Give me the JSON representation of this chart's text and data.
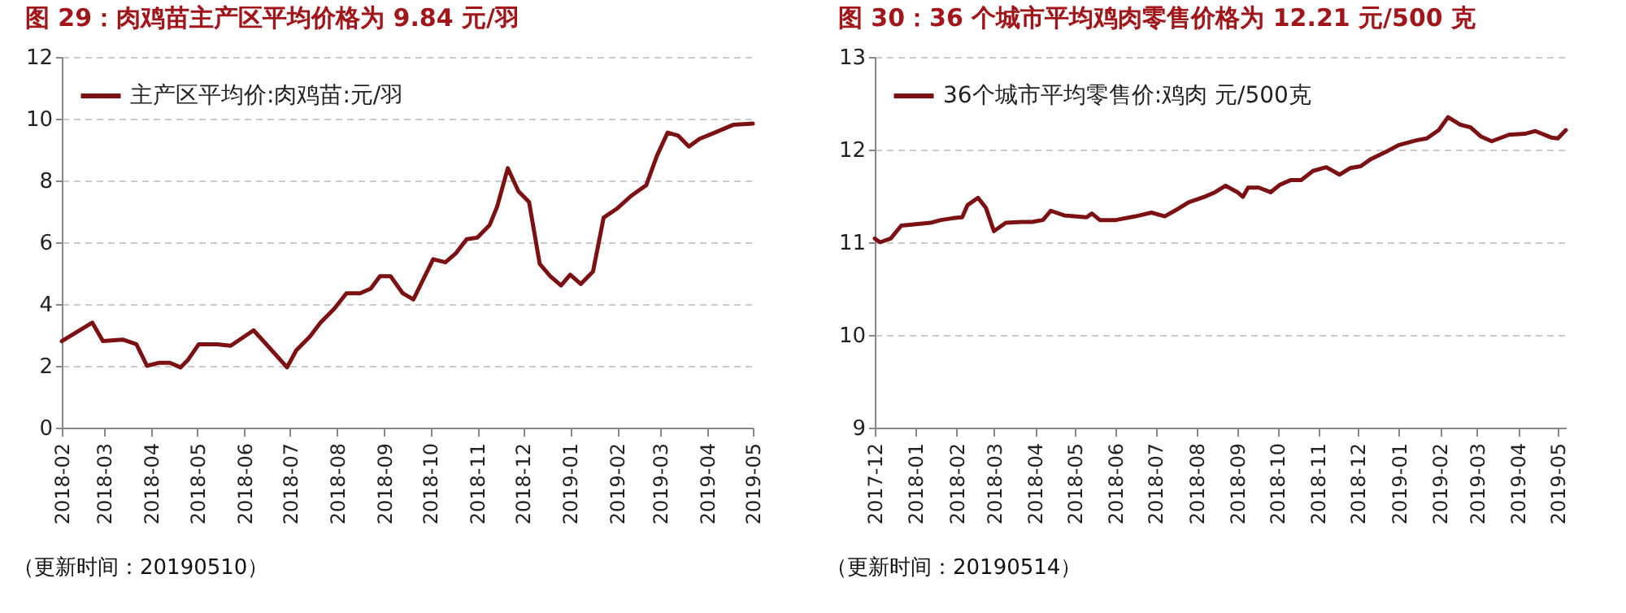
{
  "chart_data": [
    {
      "type": "line",
      "title": "图 29：肉鸡苗主产区平均价格为 9.84 元/羽",
      "x": [
        "2018-02-01",
        "2018-02-21",
        "2018-02-28",
        "2018-03-13",
        "2018-03-22",
        "2018-03-29",
        "2018-04-06",
        "2018-04-13",
        "2018-04-20",
        "2018-04-25",
        "2018-05-02",
        "2018-05-14",
        "2018-05-23",
        "2018-06-07",
        "2018-06-19",
        "2018-06-29",
        "2018-07-05",
        "2018-07-14",
        "2018-07-21",
        "2018-07-30",
        "2018-08-07",
        "2018-08-16",
        "2018-08-23",
        "2018-08-29",
        "2018-09-05",
        "2018-09-13",
        "2018-09-20",
        "2018-09-27",
        "2018-10-03",
        "2018-10-11",
        "2018-10-18",
        "2018-10-25",
        "2018-11-01",
        "2018-11-09",
        "2018-11-14",
        "2018-11-21",
        "2018-11-28",
        "2018-12-05",
        "2018-12-12",
        "2018-12-19",
        "2018-12-26",
        "2019-01-01",
        "2019-01-08",
        "2019-01-16",
        "2019-01-23",
        "2019-02-01",
        "2019-02-10",
        "2019-02-20",
        "2019-02-27",
        "2019-03-06",
        "2019-03-13",
        "2019-03-20",
        "2019-03-27",
        "2019-04-06",
        "2019-04-18",
        "2019-05-01"
      ],
      "series": [
        {
          "name": "主产区平均价:肉鸡苗:元/羽",
          "color": "#7b1113",
          "values": [
            2.8,
            3.4,
            2.8,
            2.85,
            2.7,
            2.0,
            2.1,
            2.1,
            1.95,
            2.2,
            2.7,
            2.7,
            2.65,
            3.15,
            2.5,
            1.95,
            2.5,
            2.95,
            3.4,
            3.85,
            4.35,
            4.35,
            4.5,
            4.9,
            4.9,
            4.35,
            4.15,
            4.85,
            5.45,
            5.35,
            5.65,
            6.1,
            6.15,
            6.55,
            7.15,
            8.4,
            7.65,
            7.3,
            5.3,
            4.9,
            4.6,
            4.95,
            4.65,
            5.05,
            6.8,
            7.1,
            7.5,
            7.85,
            8.8,
            9.55,
            9.45,
            9.1,
            9.35,
            9.55,
            9.8,
            9.84
          ]
        }
      ],
      "xlim": [
        "2018-02-01",
        "2019-05-01"
      ],
      "xticks": [
        "2018-02",
        "2018-03",
        "2018-04",
        "2018-05",
        "2018-06",
        "2018-07",
        "2018-08",
        "2018-09",
        "2018-10",
        "2018-11",
        "2018-12",
        "2019-01",
        "2019-02",
        "2019-03",
        "2019-04",
        "2019-05"
      ],
      "ylim": [
        0,
        12
      ],
      "yticks": [
        0,
        2,
        4,
        6,
        8,
        10,
        12
      ],
      "grid": "y",
      "legend": "top left",
      "annotations": [
        "（更新时间：20190510）"
      ]
    },
    {
      "type": "line",
      "title": "图 30：36 个城市平均鸡肉零售价格为 12.21 元/500 克",
      "x": [
        "2017-12-01",
        "2017-12-05",
        "2017-12-13",
        "2017-12-21",
        "2017-12-29",
        "2018-01-12",
        "2018-01-20",
        "2018-01-29",
        "2018-02-05",
        "2018-02-09",
        "2018-02-17",
        "2018-02-23",
        "2018-03-01",
        "2018-03-10",
        "2018-03-22",
        "2018-03-30",
        "2018-04-07",
        "2018-04-13",
        "2018-04-23",
        "2018-05-10",
        "2018-05-14",
        "2018-05-20",
        "2018-06-01",
        "2018-06-16",
        "2018-06-28",
        "2018-07-08",
        "2018-07-18",
        "2018-07-26",
        "2018-08-07",
        "2018-08-15",
        "2018-08-23",
        "2018-09-01",
        "2018-09-05",
        "2018-09-09",
        "2018-09-17",
        "2018-09-26",
        "2018-10-03",
        "2018-10-11",
        "2018-10-19",
        "2018-10-28",
        "2018-11-07",
        "2018-11-17",
        "2018-11-25",
        "2018-12-03",
        "2018-12-11",
        "2018-12-24",
        "2019-01-01",
        "2019-01-14",
        "2019-01-22",
        "2019-01-31",
        "2019-02-07",
        "2019-02-16",
        "2019-02-24",
        "2019-03-04",
        "2019-03-12",
        "2019-03-25",
        "2019-04-06",
        "2019-04-14",
        "2019-04-26",
        "2019-05-01",
        "2019-05-07"
      ],
      "series": [
        {
          "name": "36个城市平均零售价:鸡肉 元/500克",
          "color": "#7b1113",
          "values": [
            11.04,
            11.0,
            11.04,
            11.18,
            11.19,
            11.21,
            11.24,
            11.26,
            11.27,
            11.4,
            11.48,
            11.37,
            11.12,
            11.21,
            11.22,
            11.22,
            11.24,
            11.34,
            11.29,
            11.27,
            11.31,
            11.24,
            11.24,
            11.28,
            11.32,
            11.28,
            11.36,
            11.43,
            11.49,
            11.54,
            11.61,
            11.54,
            11.49,
            11.59,
            11.59,
            11.54,
            11.62,
            11.67,
            11.67,
            11.77,
            11.81,
            11.73,
            11.8,
            11.82,
            11.9,
            11.99,
            12.05,
            12.1,
            12.12,
            12.21,
            12.35,
            12.27,
            12.24,
            12.14,
            12.09,
            12.16,
            12.17,
            12.2,
            12.13,
            12.12,
            12.21
          ]
        }
      ],
      "xlim": [
        "2017-12-01",
        "2019-05-07"
      ],
      "xticks": [
        "2017-12",
        "2018-01",
        "2018-02",
        "2018-03",
        "2018-04",
        "2018-05",
        "2018-06",
        "2018-07",
        "2018-08",
        "2018-09",
        "2018-10",
        "2018-11",
        "2018-12",
        "2019-01",
        "2019-02",
        "2019-03",
        "2019-04",
        "2019-05"
      ],
      "ylim": [
        9,
        13
      ],
      "yticks": [
        9,
        10,
        11,
        12,
        13
      ],
      "grid": "y",
      "legend": "top left",
      "annotations": [
        "（更新时间：20190514）"
      ]
    }
  ]
}
